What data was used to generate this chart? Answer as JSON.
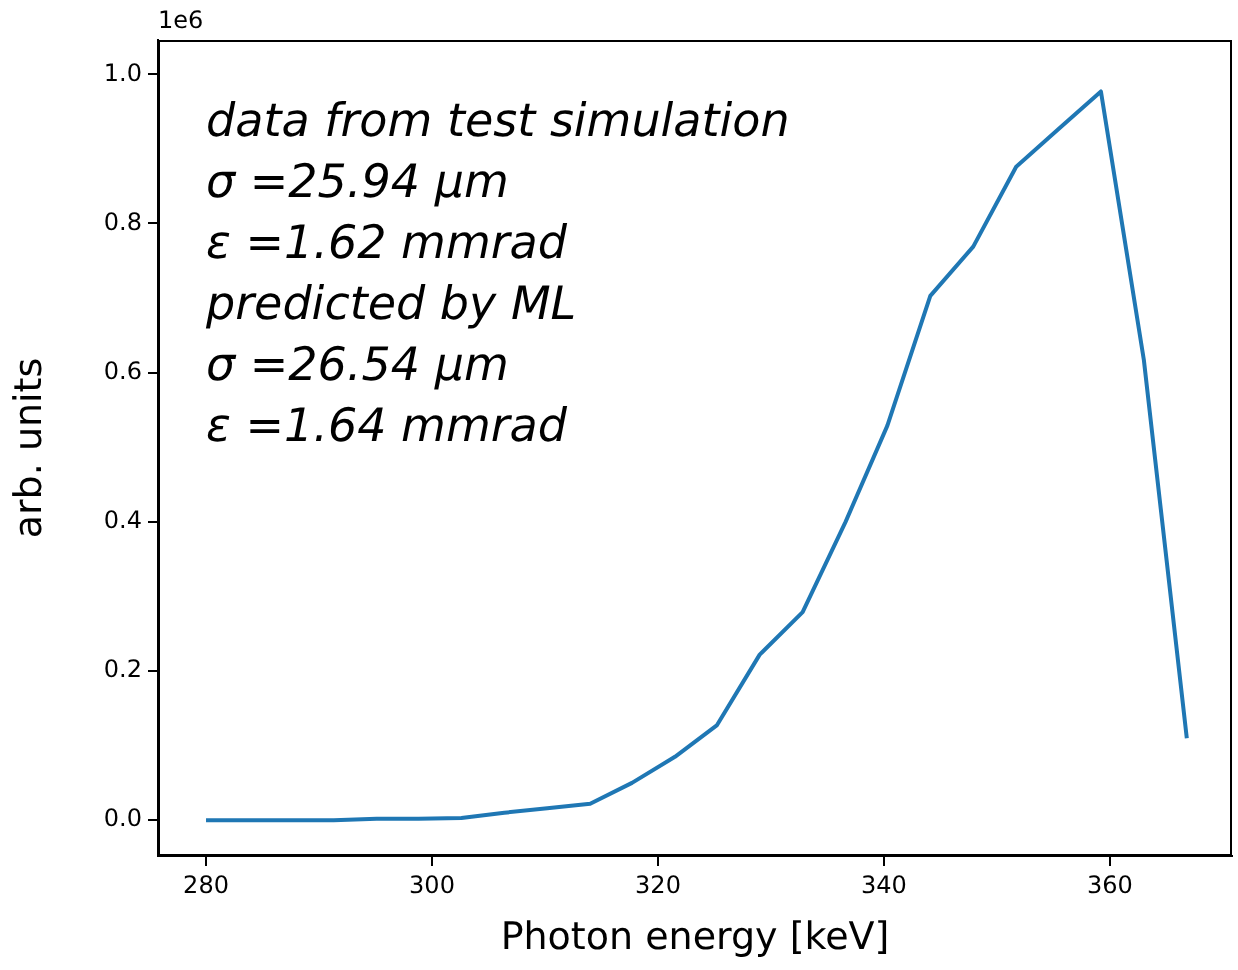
{
  "chart_data": {
    "type": "line",
    "xlabel": "Photon energy [keV]",
    "ylabel": "arb. units",
    "annotations": [
      "data from test simulation",
      "σ =25.94 μm",
      "ε =1.62 mmrad",
      "predicted by ML",
      "σ =26.54 μm",
      "ε =1.64 mmrad",
      "1e6"
    ],
    "x": [
      280,
      283.8,
      287.5,
      291.3,
      295.1,
      298.8,
      302.6,
      306.4,
      310.2,
      314,
      317.7,
      321.5,
      325.2,
      329,
      332.8,
      336.6,
      340.3,
      344.1,
      347.9,
      351.7,
      355.4,
      359.2,
      363,
      366.8
    ],
    "series": [
      {
        "color": "#1f77b4",
        "values": [
          0,
          0,
          0,
          0,
          0.002,
          0.002,
          0.003,
          0.01,
          0.016,
          0.022,
          0.05,
          0.085,
          0.127,
          0.222,
          0.279,
          0.4,
          0.529,
          0.703,
          0.769,
          0.876,
          0.926,
          0.977,
          0.617,
          0.11
        ]
      }
    ],
    "xlim": [
      275.75,
      370.8
    ],
    "xticks": [
      280,
      300,
      320,
      340,
      360
    ],
    "ylim": [
      -0.048,
      1.046
    ],
    "yticks": [
      {
        "value": 0,
        "label": "0.0"
      },
      0.2,
      0.4,
      0.6,
      0.8,
      {
        "value": 1,
        "label": "1.0"
      }
    ],
    "grid": false,
    "legend": false,
    "marker": "none",
    "line_style": "solid"
  }
}
